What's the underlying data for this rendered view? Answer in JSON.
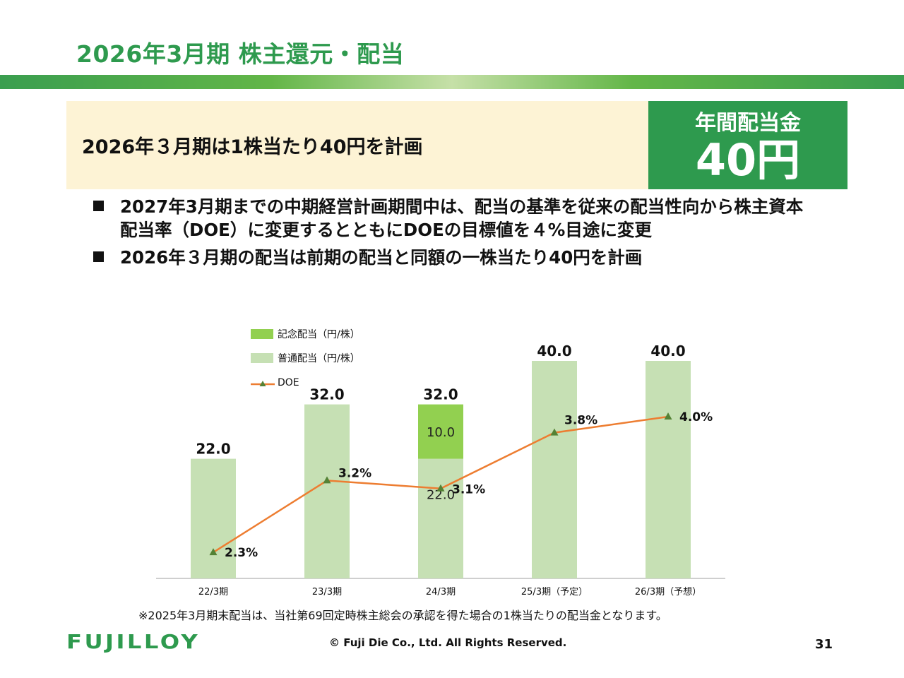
{
  "page": {
    "title": "2026年3月期 株主還元・配当",
    "banner_text": "2026年３月期は1株当たり40円を計画",
    "badge_label": "年間配当金",
    "badge_value": "40円",
    "bullets": [
      "2027年3月期までの中期経営計画期間中は、配当の基準を従来の配当性向から株主資本配当率（DOE）に変更するとともにDOEの目標値を４%目途に変更",
      "2026年３月期の配当は前期の配当と同額の一株当たり40円を計画"
    ],
    "note": "※2025年3月期末配当は、当社第69回定時株主総会の承認を得た場合の1株当たりの配当金となります。",
    "logo_text": "FUJILLOY",
    "copyright": "© Fuji Die Co., Ltd. All Rights Reserved.",
    "page_number": "31"
  },
  "chart_data": {
    "type": "bar",
    "categories": [
      "22/3期",
      "23/3期",
      "24/3期",
      "25/3期（予定）",
      "26/3期（予想）"
    ],
    "series": [
      {
        "name": "普通配当（円/株）",
        "kind": "bar",
        "values": [
          22.0,
          32.0,
          22.0,
          40.0,
          40.0
        ],
        "color": "#c6e0b4"
      },
      {
        "name": "記念配当（円/株）",
        "kind": "bar",
        "values": [
          0,
          0,
          10.0,
          0,
          0
        ],
        "color": "#92d050"
      },
      {
        "name": "DOE",
        "kind": "line",
        "values": [
          2.3,
          3.2,
          3.1,
          3.8,
          4.0
        ],
        "color": "#ed7d31",
        "marker_color": "#548235"
      }
    ],
    "bar_totals": [
      "22.0",
      "32.0",
      "32.0",
      "40.0",
      "40.0"
    ],
    "segment_labels": [
      {
        "index": 2,
        "series": "普通配当（円/株）",
        "text": "22.0"
      },
      {
        "index": 2,
        "series": "記念配当（円/株）",
        "text": "10.0"
      }
    ],
    "doe_labels": [
      "2.3%",
      "3.2%",
      "3.1%",
      "3.8%",
      "4.0%"
    ],
    "legend_position": "top-left",
    "grid": false
  }
}
